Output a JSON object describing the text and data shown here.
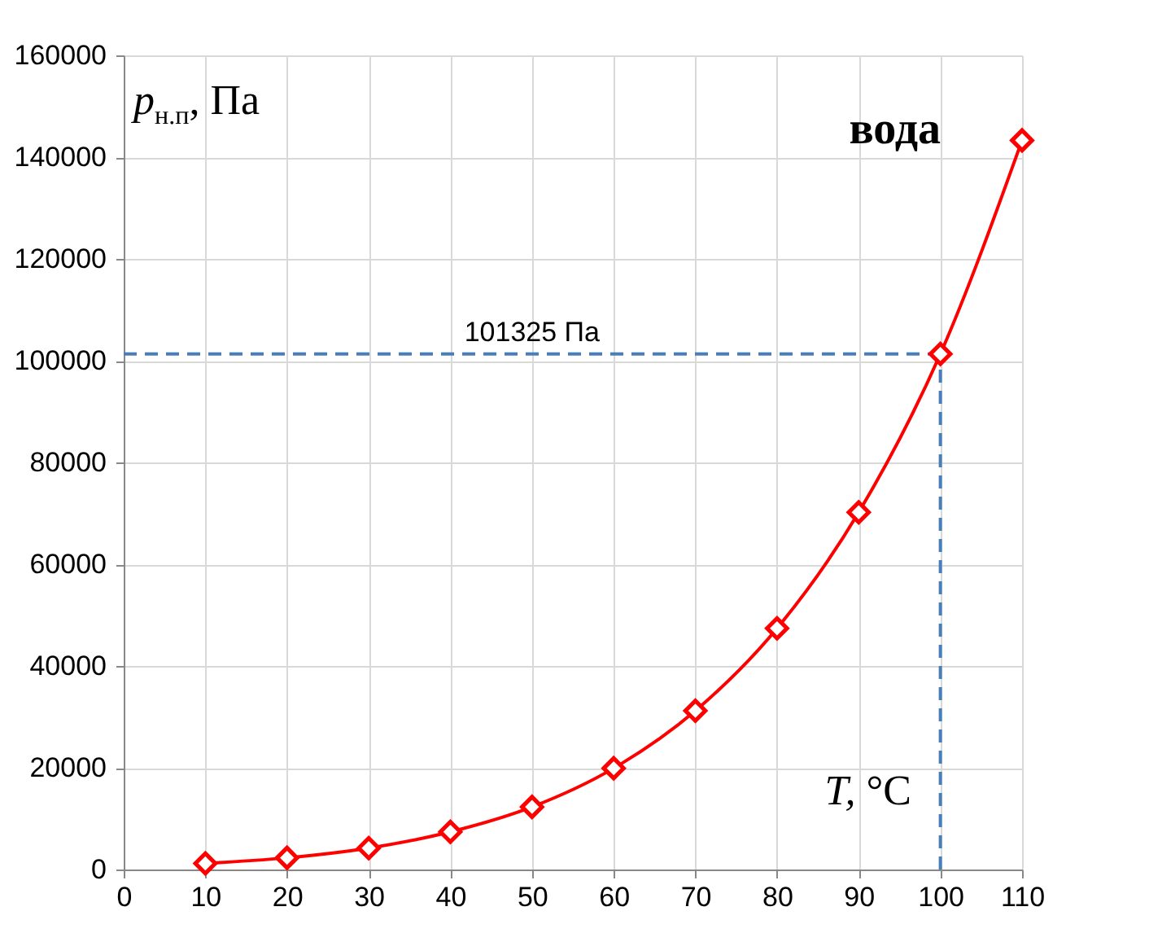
{
  "chart_data": {
    "type": "line",
    "xlabel": "T, °C",
    "ylabel": "p$_{н.п}$, Па",
    "annotations": [
      "вода"
    ],
    "x": [
      10,
      20,
      30,
      40,
      50,
      60,
      70,
      80,
      90,
      100,
      110
    ],
    "series": [
      {
        "color": "#ff0000",
        "values": [
          1200,
          2300,
          4200,
          7400,
          12300,
          19900,
          31200,
          47400,
          70200,
          101325,
          143300
        ]
      }
    ],
    "xlim": [
      0,
      110
    ],
    "xticks": [
      0,
      10,
      20,
      30,
      40,
      50,
      60,
      70,
      80,
      90,
      100,
      110
    ],
    "ylim": [
      0,
      160000
    ],
    "yticks": [
      0,
      20000,
      40000,
      60000,
      80000,
      100000,
      120000,
      140000,
      160000
    ],
    "grid": true,
    "marker": "diamond",
    "line_style": "solid",
    "ref_lines": [
      {
        "axis": "y",
        "value": 101325,
        "label": "101325 Па",
        "color": "#4a7ebb",
        "line_style": "dashed"
      },
      {
        "axis": "x",
        "value": 100,
        "color": "#4a7ebb",
        "line_style": "dashed"
      }
    ]
  }
}
